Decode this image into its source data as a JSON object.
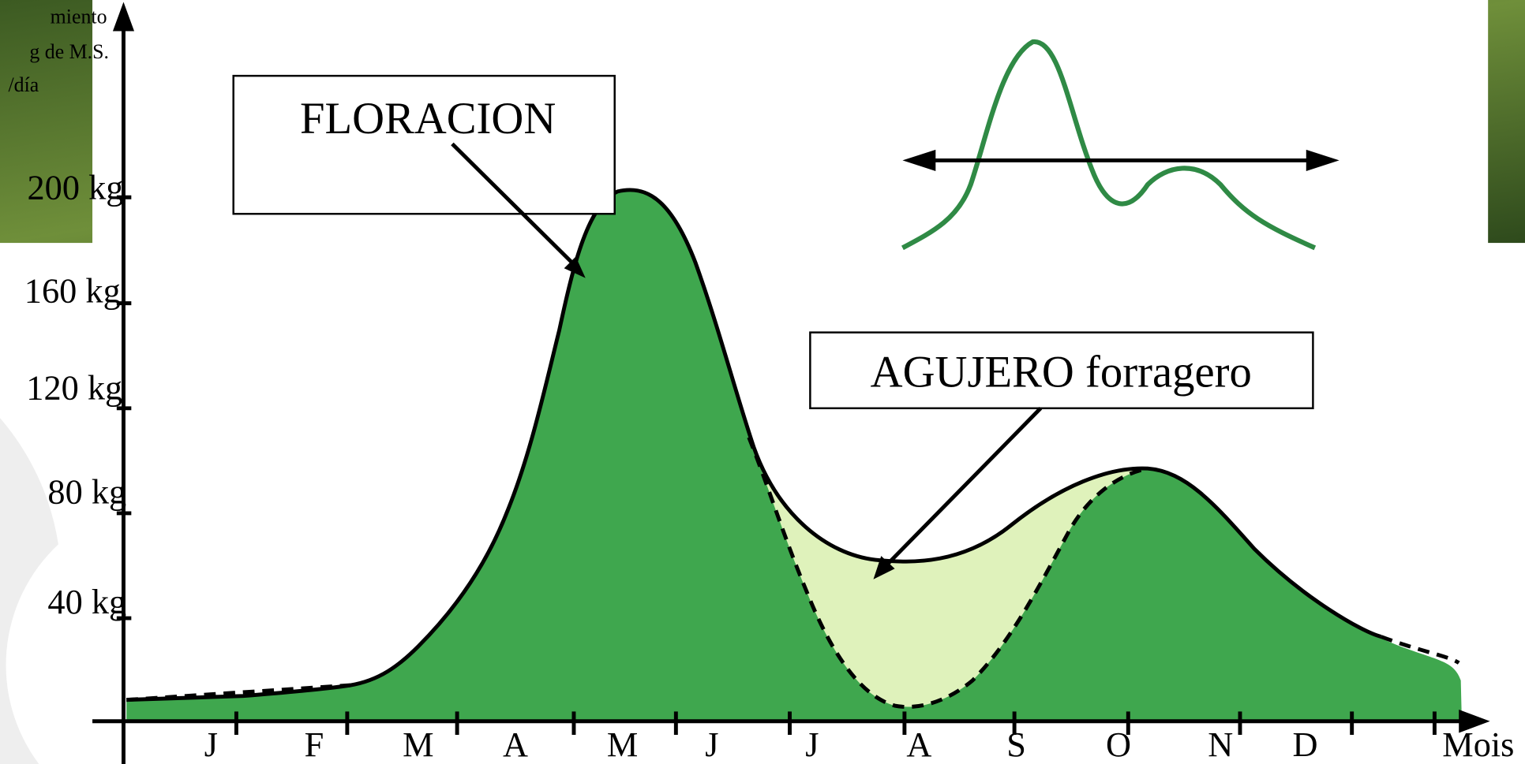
{
  "corner_label": [
    "miento",
    "g de M.S.",
    "/día"
  ],
  "y_labels": [
    "200 kg",
    "160 kg",
    "120 kg",
    "80 kg",
    "40 kg"
  ],
  "x_labels": [
    "J",
    "F",
    "M",
    "A",
    "M",
    "J",
    "J",
    "A",
    "S",
    "O",
    "N",
    "D"
  ],
  "x_axis_label": "Mois",
  "callouts": {
    "floracion": "FLORACION",
    "agujero": "AGUJERO forragero"
  }
}
